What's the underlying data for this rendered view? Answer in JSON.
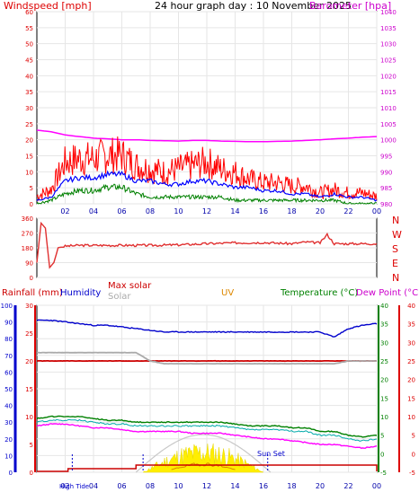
{
  "header": {
    "title": "24 hour graph day : 10 November 2025",
    "left_label": "Windspeed [mph]",
    "right_label": "Barometer [hpa]"
  },
  "colors": {
    "wind": "#ff0000",
    "gust": "#ff0000",
    "avg": "#0000ff",
    "min": "#008000",
    "baro": "#ff00ff",
    "dir": "#e03030",
    "rain": "#cc0000",
    "hum": "#0000cc",
    "maxsolar": "#c8c8c8",
    "solar": "#ffee00",
    "uv": "#dd8800",
    "temp": "#008000",
    "dew": "#ff00ff",
    "chill": "#00aaaa",
    "axis_red": "#dd0000",
    "axis_blue": "#0000cc",
    "axis_green": "#008000",
    "axis_magenta": "#cc00cc"
  },
  "chart_data": [
    {
      "type": "line",
      "title": "24 hour graph day : 10 November 2025",
      "ylabel": "Windspeed [mph]",
      "y2label": "Barometer [hpa]",
      "ylim": [
        0,
        60
      ],
      "y2lim": [
        980,
        1040
      ],
      "xticks": [
        "02",
        "04",
        "06",
        "08",
        "10",
        "12",
        "14",
        "16",
        "18",
        "20",
        "22",
        "00"
      ],
      "yticks": [
        "0",
        "5",
        "10",
        "15",
        "20",
        "25",
        "30",
        "35",
        "40",
        "45",
        "50",
        "55",
        "60"
      ],
      "y2ticks": [
        "980",
        "985",
        "990",
        "995",
        "1000",
        "1005",
        "1010",
        "1015",
        "1020",
        "1025",
        "1030",
        "1035",
        "1040"
      ],
      "x": [
        0,
        1,
        2,
        3,
        4,
        5,
        6,
        7,
        8,
        9,
        10,
        11,
        12,
        13,
        14,
        15,
        16,
        17,
        18,
        19,
        20,
        21,
        22,
        23,
        24
      ],
      "series": [
        {
          "key": "gust",
          "values": [
            2,
            4,
            12,
            13,
            13,
            14,
            14,
            11,
            10,
            9,
            10,
            11,
            12,
            10,
            9,
            7,
            6,
            6,
            5,
            5,
            3,
            4,
            3,
            3,
            2
          ]
        },
        {
          "key": "avg",
          "values": [
            1,
            2,
            7,
            8,
            8,
            9,
            9,
            7,
            7,
            6,
            6,
            7,
            7,
            6,
            5,
            5,
            4,
            4,
            3,
            3,
            2,
            3,
            2,
            2,
            1
          ]
        },
        {
          "key": "min",
          "values": [
            0,
            1,
            3,
            4,
            4,
            5,
            5,
            3,
            2,
            2,
            2,
            2,
            2,
            2,
            1,
            1,
            1,
            1,
            1,
            1,
            1,
            1,
            0,
            0,
            0
          ]
        },
        {
          "key": "baro",
          "values": [
            1003,
            1002.5,
            1001.5,
            1001,
            1000.5,
            1000.3,
            1000,
            1000,
            999.8,
            999.7,
            999.6,
            999.8,
            999.8,
            999.6,
            999.5,
            999.4,
            999.4,
            999.5,
            999.6,
            999.8,
            1000,
            1000.3,
            1000.5,
            1000.8,
            1001
          ]
        }
      ]
    },
    {
      "type": "line",
      "ylabel": "Wind direction",
      "ylim": [
        0,
        360
      ],
      "yticks": [
        "0",
        "90",
        "180",
        "270",
        "360"
      ],
      "compass": [
        "N",
        "W",
        "S",
        "E",
        "N"
      ],
      "x": [
        0,
        0.3,
        0.6,
        0.9,
        1.2,
        1.5,
        2,
        3,
        4,
        6,
        8,
        10,
        12,
        14,
        16,
        18,
        19,
        20,
        20.5,
        21,
        22,
        23,
        24
      ],
      "series": [
        {
          "key": "dir",
          "values": [
            90,
            330,
            300,
            60,
            90,
            180,
            190,
            195,
            195,
            195,
            195,
            198,
            205,
            210,
            212,
            205,
            215,
            210,
            260,
            205,
            205,
            205,
            205
          ]
        }
      ]
    },
    {
      "type": "line",
      "legend": [
        "Rainfall (mm)",
        "Humidity",
        "Max solar",
        "Solar",
        "UV",
        "Temperature (°C)",
        "Dew Point (°C)"
      ],
      "ylim_humidity": [
        0,
        100
      ],
      "ylim_rain": [
        0,
        30
      ],
      "ylim_temp": [
        -5,
        40
      ],
      "yticks_humidity": [
        "0",
        "10",
        "20",
        "30",
        "40",
        "50",
        "60",
        "70",
        "80",
        "90",
        "100"
      ],
      "yticks_rain": [
        "0",
        "5",
        "10",
        "15",
        "20",
        "25",
        "30"
      ],
      "yticks_temp": [
        "-5",
        "0",
        "5",
        "10",
        "15",
        "20",
        "25",
        "30",
        "35",
        "40"
      ],
      "x": [
        0,
        1,
        2,
        3,
        4,
        5,
        6,
        7,
        8,
        9,
        10,
        11,
        12,
        13,
        14,
        15,
        16,
        17,
        18,
        19,
        20,
        21,
        22,
        23,
        24
      ],
      "series": [
        {
          "key": "hum",
          "values": [
            91,
            91,
            90,
            89,
            88,
            88,
            87,
            86,
            85,
            84,
            84,
            84,
            84,
            84,
            84,
            84,
            84,
            84,
            84,
            84,
            84,
            81,
            86,
            88,
            89
          ]
        },
        {
          "key": "rain",
          "values": [
            20,
            20,
            20,
            20,
            20,
            20,
            20,
            20,
            20,
            20,
            20,
            20,
            20,
            20,
            20,
            20,
            20,
            20,
            20,
            20,
            20,
            20,
            20,
            20,
            20
          ]
        },
        {
          "key": "solar_max_line",
          "values": [
            21.5,
            21.5,
            21.5,
            21.5,
            21.5,
            21.5,
            21.5,
            21.5,
            20,
            19.5,
            19.5,
            19.5,
            19.5,
            19.5,
            19.5,
            19.5,
            19.5,
            19.5,
            19.5,
            19.5,
            19.5,
            19.5,
            20,
            20,
            20
          ]
        },
        {
          "key": "temp",
          "values": [
            9.5,
            10,
            10,
            10,
            9.5,
            9,
            9,
            8.5,
            8.5,
            8.5,
            8.5,
            8.5,
            8.5,
            8.5,
            8,
            7.5,
            7.5,
            7.5,
            7,
            7,
            6,
            6,
            5,
            4.5,
            5
          ]
        },
        {
          "key": "chill",
          "values": [
            8.5,
            9,
            9,
            9,
            8.5,
            8,
            8,
            7.5,
            7.5,
            7.5,
            7.5,
            7.5,
            7.5,
            7.5,
            7,
            6.5,
            6.5,
            6.5,
            6,
            6,
            5,
            5,
            4,
            3.5,
            4
          ]
        },
        {
          "key": "dew",
          "values": [
            7.5,
            8,
            8,
            7.5,
            7,
            7,
            6.5,
            6,
            6,
            6,
            6,
            5.5,
            5.5,
            5.5,
            5,
            4.5,
            4,
            4,
            3.5,
            3,
            2.5,
            2.5,
            2,
            1.5,
            2
          ]
        }
      ],
      "annotations": [
        "Sun Set",
        "High Tide"
      ]
    }
  ]
}
